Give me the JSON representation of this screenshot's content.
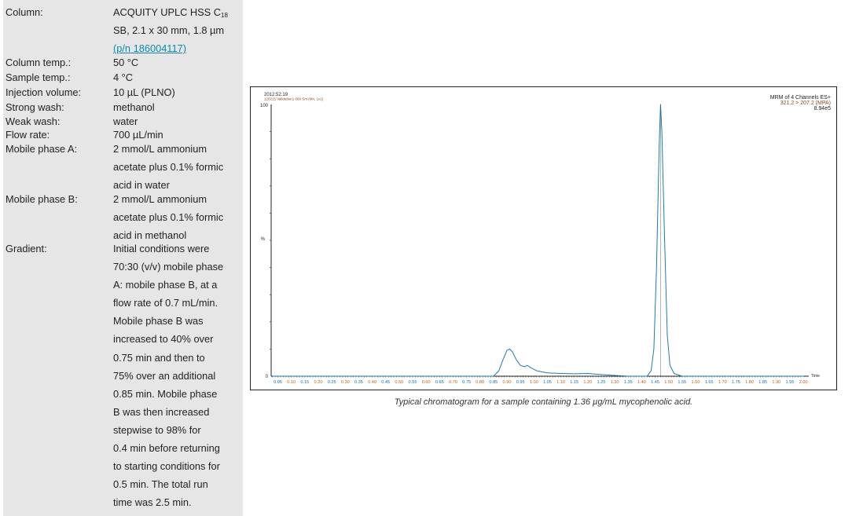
{
  "conditions": [
    {
      "label": "Column:",
      "lines": [
        "ACQUITY UPLC HSS C",
        "SB, 2.1 x 30 mm, 1.8 µm",
        "(p/n 186004117)"
      ],
      "sub": "18"
    },
    {
      "label": "Column temp.:",
      "lines": [
        "50 °C"
      ]
    },
    {
      "label": "Sample temp.:",
      "lines": [
        "4 °C"
      ]
    },
    {
      "label": "Injection volume:",
      "lines": [
        "10 µL (PLNO)"
      ]
    },
    {
      "label": "Strong wash:",
      "lines": [
        "methanol"
      ]
    },
    {
      "label": "Weak wash:",
      "lines": [
        "water"
      ]
    },
    {
      "label": "Flow rate:",
      "lines": [
        "700 µL/min"
      ]
    },
    {
      "label": "Mobile phase A:",
      "lines": [
        "2 mmol/L ammonium",
        "acetate plus 0.1% formic",
        "acid in water"
      ]
    },
    {
      "label": "Mobile phase B:",
      "lines": [
        "2 mmol/L ammonium",
        "acetate plus 0.1% formic",
        "acid in methanol"
      ]
    },
    {
      "label": "Gradient:",
      "lines": [
        "Initial conditions were",
        "70:30 (v/v) mobile phase",
        "A: mobile phase B, at a",
        "flow rate of 0.7 mL/min.",
        "Mobile phase B was",
        "increased to 40% over",
        "0.75 min and then to",
        "75% over an additional",
        "0.85 min. Mobile phase",
        "B was then increased",
        "stepwise to 98% for",
        "0.4 min before returning",
        "to starting conditions for",
        "0.5 min. The total run",
        "time was 2.5 min."
      ]
    }
  ],
  "colors": {
    "panel": "#e6e6e6",
    "link": "#0a8ab0",
    "trace": "#1a7fa8",
    "tick_orange": "#c0601a",
    "tick_blue": "#1a6fa8"
  },
  "chart_data": {
    "type": "line",
    "header_left": [
      "2012:52:19",
      "120215 Validation1 066 Sm (Mn, 1x1)"
    ],
    "header_right": [
      "MRM of 4 Channels ES+",
      "321.2 > 207.2 (MPA)",
      "8.94e5"
    ],
    "ylabel": "%",
    "xlabel": "Time",
    "y_ticks": [
      "100",
      "0"
    ],
    "xlim": [
      0.025,
      2.02
    ],
    "ylim": [
      0,
      100
    ],
    "x_ticks": [
      "0.05",
      "0.10",
      "0.15",
      "0.20",
      "0.25",
      "0.30",
      "0.35",
      "0.40",
      "0.45",
      "0.50",
      "0.55",
      "0.60",
      "0.65",
      "0.70",
      "0.75",
      "0.80",
      "0.85",
      "0.90",
      "0.95",
      "1.00",
      "1.05",
      "1.10",
      "1.15",
      "1.20",
      "1.25",
      "1.30",
      "1.35",
      "1.40",
      "1.45",
      "1.50",
      "1.55",
      "1.60",
      "1.65",
      "1.70",
      "1.75",
      "1.80",
      "1.85",
      "1.90",
      "1.95",
      "2.00"
    ],
    "series": [
      {
        "x": [
          0.03,
          0.85,
          0.87,
          0.885,
          0.9,
          0.91,
          0.92,
          0.935,
          0.95,
          0.965,
          0.975,
          0.99,
          1.01,
          1.05,
          1.1,
          1.15,
          1.2,
          1.25,
          1.3,
          1.35,
          1.42,
          1.435,
          1.445,
          1.455,
          1.465,
          1.47,
          1.475,
          1.485,
          1.495,
          1.505,
          1.52,
          1.55,
          2.0
        ],
        "y": [
          0,
          0,
          2,
          6,
          9.5,
          10,
          9,
          6,
          4,
          3.5,
          4,
          3,
          2,
          1.2,
          1,
          0.9,
          1,
          0.6,
          0.3,
          0,
          0,
          2,
          10,
          40,
          85,
          100,
          90,
          50,
          15,
          4,
          1,
          0,
          0
        ]
      }
    ],
    "caption": "Typical chromatogram for a sample containing 1.36 µg/mL mycophenolic acid."
  }
}
